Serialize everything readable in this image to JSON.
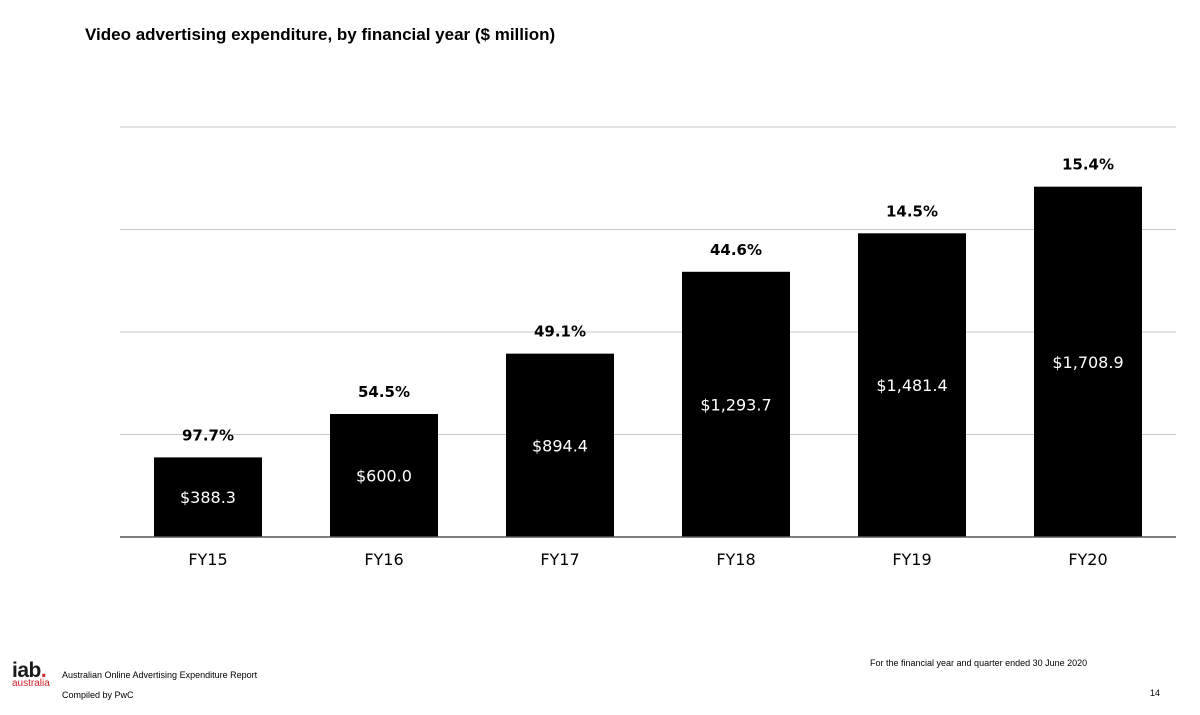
{
  "page": {
    "title": "Video advertising expenditure, by financial year ($ million)"
  },
  "chart_data": {
    "type": "bar",
    "title": "Video advertising expenditure, by financial year ($ million)",
    "xlabel": "",
    "ylabel": "",
    "categories": [
      "FY15",
      "FY16",
      "FY17",
      "FY18",
      "FY19",
      "FY20"
    ],
    "values": [
      388.3,
      600.0,
      894.4,
      1293.7,
      1481.4,
      1708.9
    ],
    "value_labels": [
      "$388.3",
      "$600.0",
      "$894.4",
      "$1,293.7",
      "$1,481.4",
      "$1,708.9"
    ],
    "growth_labels": [
      "97.7%",
      "54.5%",
      "49.1%",
      "44.6%",
      "14.5%",
      "15.4%"
    ],
    "ylim": [
      0,
      2000
    ],
    "gridlines": [
      0,
      500,
      1000,
      1500,
      2000
    ],
    "grid": true,
    "y_tick_labels_shown": false,
    "legend": "none",
    "colors": {
      "bar": "#000000",
      "bar_label": "#ffffff",
      "grid": "#c8c8c8",
      "axis": "#555555"
    }
  },
  "footer": {
    "logo_main": "iab",
    "logo_dot": ".",
    "logo_sub": "australia",
    "report": "Australian Online Advertising Expenditure Report",
    "compiled": "Compiled by PwC",
    "period": "For the financial year and quarter ended 30 June 2020",
    "page_number": "14"
  }
}
